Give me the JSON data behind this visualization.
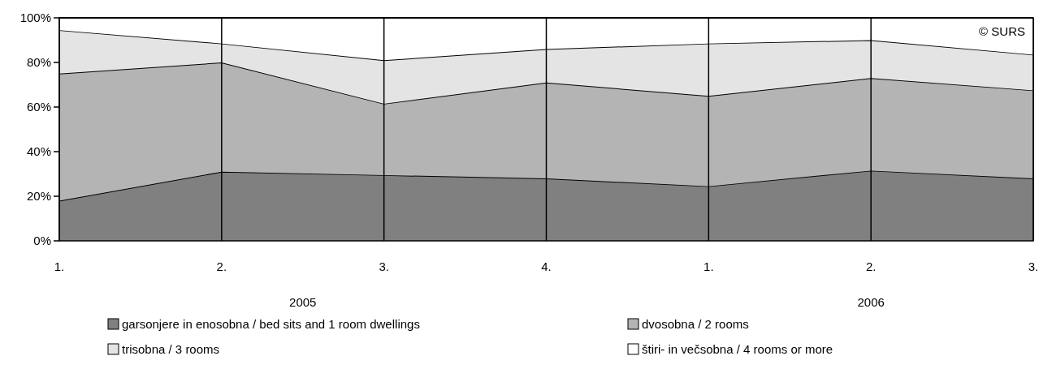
{
  "chart_data": {
    "type": "area",
    "stacked": true,
    "categories": [
      "1.",
      "2.",
      "3.",
      "4.",
      "1.",
      "2.",
      "3."
    ],
    "series": [
      {
        "name": "garsonjere in enosobna / bed sits and 1 room dwellings",
        "color": "#808080",
        "values": [
          18,
          31,
          29.5,
          28,
          24.5,
          31.5,
          28
        ]
      },
      {
        "name": "dvosobna / 2 rooms",
        "color": "#b4b4b4",
        "values": [
          57,
          49,
          32,
          43,
          40.5,
          41.5,
          39.5
        ]
      },
      {
        "name": "trisobna / 3 rooms",
        "color": "#e4e4e4",
        "values": [
          19.5,
          8.5,
          19.5,
          15,
          23.5,
          17,
          16
        ]
      },
      {
        "name": "štiri- in večsobna / 4 rooms or more",
        "color": "#ffffff",
        "values": [
          5.5,
          11.5,
          19,
          14,
          11.5,
          10,
          16.5
        ]
      }
    ],
    "ylim": [
      0,
      100
    ],
    "yticks": [
      {
        "value": 0,
        "label": "0%"
      },
      {
        "value": 20,
        "label": "20%"
      },
      {
        "value": 40,
        "label": "40%"
      },
      {
        "value": 60,
        "label": "60%"
      },
      {
        "value": 80,
        "label": "80%"
      },
      {
        "value": 100,
        "label": "100%"
      }
    ],
    "grid": "x",
    "legend": "bottom",
    "annotations": [
      "2005",
      "2006",
      "© SURS"
    ]
  }
}
